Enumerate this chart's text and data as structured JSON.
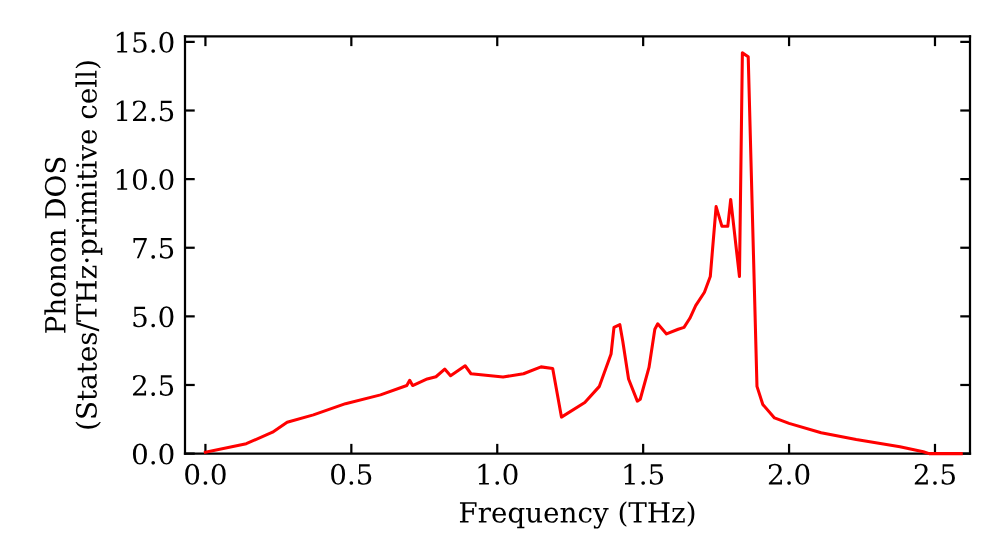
{
  "chart_data": {
    "type": "line",
    "xlabel": "Frequency (THz)",
    "ylabel": "Phonon DOS\n(States/THz·primitive cell)",
    "x": [
      0,
      0.14,
      0.23,
      0.28,
      0.37,
      0.48,
      0.6,
      0.69,
      0.7,
      0.71,
      0.76,
      0.79,
      0.82,
      0.84,
      0.89,
      0.91,
      1.02,
      1.09,
      1.15,
      1.19,
      1.22,
      1.3,
      1.35,
      1.39,
      1.4,
      1.42,
      1.43,
      1.45,
      1.48,
      1.49,
      1.52,
      1.54,
      1.55,
      1.58,
      1.62,
      1.64,
      1.66,
      1.68,
      1.71,
      1.73,
      1.75,
      1.77,
      1.79,
      1.8,
      1.83,
      1.84,
      1.86,
      1.89,
      1.91,
      1.95,
      2.0,
      2.11,
      2.23,
      2.38,
      2.46,
      2.48,
      2.59
    ],
    "series": [
      {
        "color": "#ff0000",
        "values": [
          0.05,
          0.36,
          0.78,
          1.14,
          1.41,
          1.82,
          2.14,
          2.48,
          2.67,
          2.48,
          2.72,
          2.8,
          3.08,
          2.84,
          3.2,
          2.91,
          2.79,
          2.91,
          3.16,
          3.1,
          1.33,
          1.86,
          2.45,
          3.63,
          4.6,
          4.7,
          4.1,
          2.72,
          1.91,
          1.98,
          3.14,
          4.53,
          4.73,
          4.36,
          4.53,
          4.6,
          4.93,
          5.39,
          5.88,
          6.45,
          9.0,
          8.28,
          8.28,
          9.26,
          6.45,
          14.6,
          14.46,
          2.45,
          1.79,
          1.3,
          1.1,
          0.76,
          0.51,
          0.25,
          0.07,
          0,
          0
        ]
      }
    ],
    "xlim": [
      -0.07,
      2.62
    ],
    "ylim": [
      0,
      15.2
    ],
    "xticks": [
      {
        "value": 0,
        "label": "0.0"
      },
      {
        "value": 0.5,
        "label": "0.5"
      },
      {
        "value": 1,
        "label": "1.0"
      },
      {
        "value": 1.5,
        "label": "1.5"
      },
      {
        "value": 2,
        "label": "2.0"
      },
      {
        "value": 2.5,
        "label": "2.5"
      }
    ],
    "yticks": [
      {
        "value": 0,
        "label": "0.0"
      },
      {
        "value": 2.5,
        "label": "2.5"
      },
      {
        "value": 5,
        "label": "5.0"
      },
      {
        "value": 7.5,
        "label": "7.5"
      },
      {
        "value": 10,
        "label": "10.0"
      },
      {
        "value": 12.5,
        "label": "12.5"
      },
      {
        "value": 15,
        "label": "15.0"
      }
    ],
    "grid": false,
    "legend": false,
    "marker": "none",
    "line_style": "solid"
  }
}
